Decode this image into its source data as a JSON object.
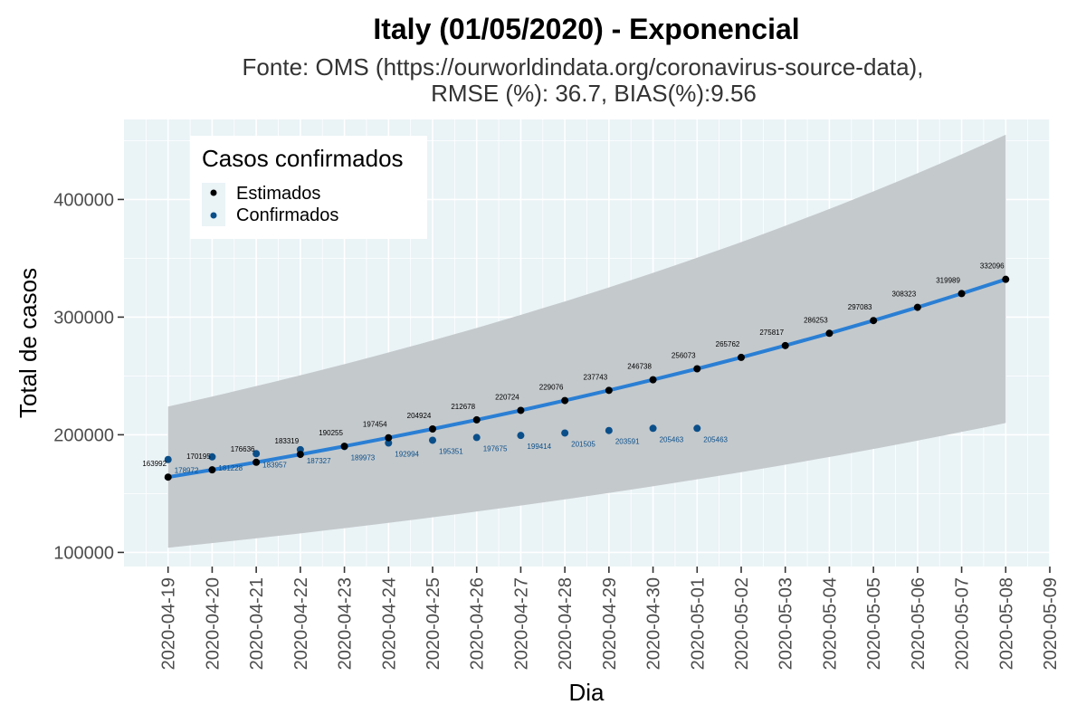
{
  "chart_data": {
    "type": "line",
    "title": "Italy (01/05/2020) - Exponencial",
    "subtitle_lines": [
      "Fonte: OMS (https://ourworldindata.org/coronavirus-source-data),",
      "RMSE (%): 36.7, BIAS(%):9.56"
    ],
    "xlabel": "Dia",
    "ylabel": "Total de casos",
    "x_ticks": [
      "2020-04-19",
      "2020-04-20",
      "2020-04-21",
      "2020-04-22",
      "2020-04-23",
      "2020-04-24",
      "2020-04-25",
      "2020-04-26",
      "2020-04-27",
      "2020-04-28",
      "2020-04-29",
      "2020-04-30",
      "2020-05-01",
      "2020-05-02",
      "2020-05-03",
      "2020-05-04",
      "2020-05-05",
      "2020-05-06",
      "2020-05-07",
      "2020-05-08",
      "2020-05-09"
    ],
    "y_ticks": [
      100000,
      200000,
      300000,
      400000
    ],
    "y_tick_labels": [
      "100000",
      "200000",
      "300000",
      "400000"
    ],
    "xlim": [
      "2020-04-18",
      "2020-05-09"
    ],
    "ylim": [
      88000,
      468000
    ],
    "grid": true,
    "legend": {
      "title": "Casos confirmados",
      "placement": "top-left",
      "entries": [
        "Estimados",
        "Confirmados"
      ]
    },
    "series": [
      {
        "name": "Estimados",
        "color": "#000000",
        "x": [
          "2020-04-19",
          "2020-04-20",
          "2020-04-21",
          "2020-04-22",
          "2020-04-23",
          "2020-04-24",
          "2020-04-25",
          "2020-04-26",
          "2020-04-27",
          "2020-04-28",
          "2020-04-29",
          "2020-04-30",
          "2020-05-01",
          "2020-05-02",
          "2020-05-03",
          "2020-05-04",
          "2020-05-05",
          "2020-05-06",
          "2020-05-07",
          "2020-05-08"
        ],
        "values": [
          163992,
          170195,
          176636,
          183319,
          190255,
          197454,
          204924,
          212678,
          220724,
          229076,
          237743,
          246738,
          256073,
          265762,
          275817,
          286253,
          297083,
          308323,
          319989,
          332096
        ],
        "labels": [
          "163992",
          "170195",
          "176636",
          "183319",
          "190255",
          "197454",
          "204924",
          "212678",
          "220724",
          "229076",
          "237743",
          "246738",
          "256073",
          "265762",
          "275817",
          "286253",
          "297083",
          "308323",
          "319989",
          "332096"
        ]
      },
      {
        "name": "Confirmados",
        "color": "#0b4f8a",
        "x": [
          "2020-04-19",
          "2020-04-20",
          "2020-04-21",
          "2020-04-22",
          "2020-04-23",
          "2020-04-24",
          "2020-04-25",
          "2020-04-26",
          "2020-04-27",
          "2020-04-28",
          "2020-04-29",
          "2020-04-30",
          "2020-05-01"
        ],
        "values": [
          178972,
          181228,
          183957,
          187327,
          189973,
          192994,
          195351,
          197675,
          199414,
          201505,
          203591,
          205463,
          205463
        ],
        "labels": [
          "178972",
          "181228",
          "183957",
          "187327",
          "189973",
          "192994",
          "195351",
          "197675",
          "199414",
          "201505",
          "203591",
          "205463",
          "205463"
        ]
      }
    ],
    "fit_line_color": "#2a7fd4",
    "confidence_band": {
      "x": [
        "2020-04-19",
        "2020-05-08"
      ],
      "lower": [
        104000,
        210000
      ],
      "upper": [
        224000,
        455000
      ],
      "color": "#c4c9cc"
    },
    "panel_background": "#eaf3f6"
  }
}
